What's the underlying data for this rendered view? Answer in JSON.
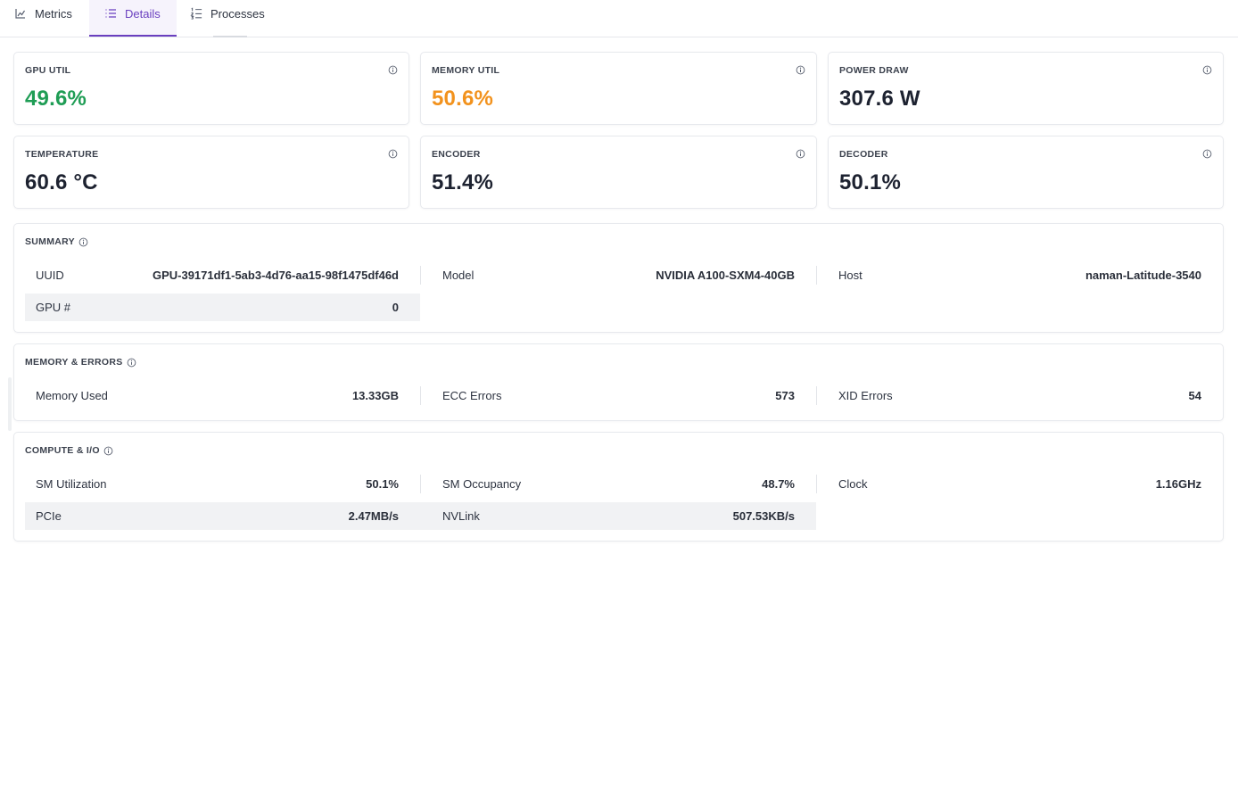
{
  "tabs": [
    {
      "label": "Metrics",
      "icon": "line-chart-icon",
      "active": false
    },
    {
      "label": "Details",
      "icon": "list-icon",
      "active": true
    },
    {
      "label": "Processes",
      "icon": "numbered-list-icon",
      "active": false
    }
  ],
  "stats": [
    {
      "label": "GPU UTIL",
      "value": "49.6%",
      "color": "#1f9d55"
    },
    {
      "label": "MEMORY UTIL",
      "value": "50.6%",
      "color": "#f2921d"
    },
    {
      "label": "POWER DRAW",
      "value": "307.6 W",
      "color": "#1d2230"
    },
    {
      "label": "TEMPERATURE",
      "value": "60.6 °C",
      "color": "#1d2230"
    },
    {
      "label": "ENCODER",
      "value": "51.4%",
      "color": "#1d2230"
    },
    {
      "label": "DECODER",
      "value": "50.1%",
      "color": "#1d2230"
    }
  ],
  "summary": {
    "title": "SUMMARY",
    "rows": [
      {
        "key": "UUID",
        "value": "GPU-39171df1-5ab3-4d76-aa15-98f1475df46d"
      },
      {
        "key": "Model",
        "value": "NVIDIA A100-SXM4-40GB"
      },
      {
        "key": "Host",
        "value": "naman-Latitude-3540"
      },
      {
        "key": "GPU #",
        "value": "0"
      }
    ]
  },
  "memory_errors": {
    "title": "MEMORY & ERRORS",
    "rows": [
      {
        "key": "Memory Used",
        "value": "13.33GB"
      },
      {
        "key": "ECC Errors",
        "value": "573"
      },
      {
        "key": "XID Errors",
        "value": "54"
      }
    ]
  },
  "compute_io": {
    "title": "COMPUTE & I/O",
    "rows": [
      {
        "key": "SM Utilization",
        "value": "50.1%"
      },
      {
        "key": "SM Occupancy",
        "value": "48.7%"
      },
      {
        "key": "Clock",
        "value": "1.16GHz"
      },
      {
        "key": "PCIe",
        "value": "2.47MB/s"
      },
      {
        "key": "NVLink",
        "value": "507.53KB/s"
      }
    ]
  }
}
